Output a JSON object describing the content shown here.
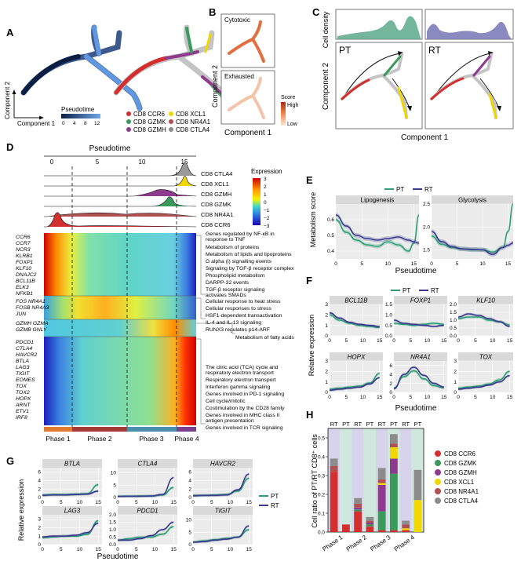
{
  "panels": {
    "a": "A",
    "b": "B",
    "c": "C",
    "d": "D",
    "e": "E",
    "f": "F",
    "g": "G",
    "h": "H"
  },
  "colors": {
    "PT": "#2e9e76",
    "RT": "#3b3b8c",
    "ccr6": "#d32f2f",
    "gzmk": "#3a9a5c",
    "gzmh": "#8e3b8e",
    "xcl1": "#f1d600",
    "nr4a1": "#b05050",
    "ctla4": "#8c8c8c",
    "bgGreen": "#cfe8dd",
    "bgPurple": "#d6d3ea"
  },
  "panelA": {
    "axis_x": "Component 1",
    "axis_y": "Component 2",
    "legend_title": "Pseudotime",
    "ticks": [
      "0",
      "4",
      "8",
      "12"
    ],
    "clusters": [
      "CD8 CCR6",
      "CD8 GZMK",
      "CD8 GZMH",
      "CD8 XCL1",
      "CD8 NR4A1",
      "CD8 CTLA4"
    ]
  },
  "panelB": {
    "top": "Cytotoxic",
    "bottom": "Exhausted",
    "axis_x": "Component 1",
    "axis_y": "Component 2",
    "score": "Score",
    "high": "High",
    "low": "Low"
  },
  "panelC": {
    "density": "Cell density",
    "pt": "PT",
    "rt": "RT",
    "axis_x": "Component 1",
    "axis_y": "Component 2"
  },
  "panelD": {
    "axis_title": "Pseudotime",
    "ticks": [
      "0",
      "5",
      "10",
      "15"
    ],
    "ridge_labels": [
      "CD8 CTLA4",
      "CD8 XCL1",
      "CD8 GZMH",
      "CD8 GZMK",
      "CD8 NR4A1",
      "CD8 CCR6"
    ],
    "expr_title": "Expression",
    "expr_ticks": [
      "3",
      "2",
      "1",
      "0",
      "−1",
      "−2",
      "−3"
    ],
    "genes": [
      "CCR6",
      "CCR7",
      "NCR3",
      "KLRB1",
      "FOXP1",
      "KLF10",
      "DNAJC2",
      "BCL11B",
      "ELK3",
      "NFKB1",
      "FOS NR4A1",
      "FOSB NR4A3",
      "JUN",
      "GZMH GZMA",
      "GZMB GNLY",
      "PDCD1",
      "CTLA4",
      "HAVCR2",
      "BTLA",
      "LAG3",
      "TIGIT",
      "EOMES",
      "TOX",
      "TOX2",
      "HOPX",
      "ARNT",
      "ETV1",
      "IRF8"
    ],
    "pathways": [
      "Genes regulated by NF-κB in",
      "response to TNF",
      "Metabolism of proteins",
      "Metabolism of lipids and lipoproteins",
      "G alpha (i) signalling events",
      "Signaling by TGF-β receptor complex",
      "Phospholipid metabolism",
      "DARPP-32 events",
      "TGF-β receptor signaling",
      "activates SMADs",
      "Cellular response to heat stress",
      "Cellular responses to stress",
      "HSF1-dependent transactivation",
      "IL-4 and IL-13 signaling",
      "RUNX3 regulates p14-ARF",
      "Metabolism of fatty acids",
      "The citric acid (TCA) cycle and",
      "respiratory electron transport",
      "Respiratory electron transport",
      "Interferon gamma signaling",
      "Genes involved in PD-1 signaling",
      "Cell cycle/mitotic",
      "Costimulation by the CD28 family",
      "Genes involved in MHC class II",
      "antigen presentation",
      "Genes involved in TCR signaling"
    ],
    "phases": [
      "Phase 1",
      "Phase 2",
      "Phase 3",
      "Phase 4"
    ]
  },
  "chart_data": [
    {
      "type": "line",
      "title": "Lipogenesis",
      "xlabel": "Pseudotime",
      "ylabel": "Metabolism score",
      "ylim": [
        0.35,
        0.7
      ],
      "yticks": [
        "0.6",
        "0.5",
        "0.4"
      ],
      "xticks": [
        "0",
        "5",
        "10",
        "15"
      ],
      "legend": [
        "PT",
        "RT"
      ],
      "series": [
        {
          "name": "PT",
          "x": [
            0,
            2,
            4,
            6,
            8,
            10,
            12,
            14,
            15,
            16
          ],
          "y": [
            0.6,
            0.52,
            0.47,
            0.44,
            0.43,
            0.46,
            0.44,
            0.4,
            0.45,
            0.63
          ]
        },
        {
          "name": "RT",
          "x": [
            0,
            2,
            4,
            6,
            8,
            10,
            12,
            14,
            15,
            16
          ],
          "y": [
            0.63,
            0.56,
            0.5,
            0.48,
            0.47,
            0.48,
            0.49,
            0.47,
            0.46,
            0.45
          ]
        }
      ]
    },
    {
      "type": "line",
      "title": "Glycolysis",
      "ylim": [
        1.3,
        2.5
      ],
      "yticks": [
        "2.5",
        "2.0",
        "1.5"
      ],
      "xticks": [
        "0",
        "5",
        "10",
        "15"
      ],
      "series": [
        {
          "name": "PT",
          "x": [
            0,
            2,
            4,
            6,
            8,
            10,
            12,
            14,
            15,
            16
          ],
          "y": [
            1.8,
            1.62,
            1.55,
            1.52,
            1.5,
            1.5,
            1.45,
            1.55,
            1.9,
            2.6
          ]
        },
        {
          "name": "RT",
          "x": [
            0,
            2,
            4,
            6,
            8,
            10,
            12,
            14,
            15,
            16
          ],
          "y": [
            1.9,
            1.68,
            1.57,
            1.52,
            1.51,
            1.5,
            1.4,
            1.55,
            1.6,
            1.65
          ]
        }
      ]
    },
    {
      "type": "line",
      "title": "Panel F",
      "xlabel": "Pseudotime",
      "ylabel": "Relative expression",
      "legend": [
        "PT",
        "RT"
      ],
      "xticks": [
        "0",
        "5",
        "10",
        "15"
      ],
      "subplots": [
        {
          "name": "BCL11B",
          "yticks": [
            "3",
            "2",
            "1",
            "0"
          ],
          "ylim": [
            0,
            3
          ],
          "PT": [
            2.0,
            1.5,
            1.2,
            1.0,
            0.9,
            0.8
          ],
          "RT": [
            2.2,
            1.7,
            1.3,
            1.1,
            1.0,
            0.9
          ]
        },
        {
          "name": "FOXP1",
          "yticks": [
            "1.5",
            "1.0",
            "0.5",
            "0.0"
          ],
          "ylim": [
            0,
            1.5
          ],
          "PT": [
            0.6,
            0.55,
            0.5,
            0.55,
            0.6,
            0.55
          ],
          "RT": [
            0.75,
            0.6,
            0.55,
            0.5,
            0.45,
            0.5
          ]
        },
        {
          "name": "KLF10",
          "yticks": [
            "2.0",
            "1.5",
            "1.0",
            "0.5",
            "0.0"
          ],
          "ylim": [
            0,
            2
          ],
          "PT": [
            1.1,
            1.2,
            1.2,
            1.0,
            0.9,
            0.7
          ],
          "RT": [
            1.2,
            1.4,
            1.3,
            1.1,
            0.9,
            0.6
          ]
        },
        {
          "name": "HOPX",
          "yticks": [
            "3",
            "2",
            "1",
            "0"
          ],
          "ylim": [
            0,
            3
          ],
          "PT": [
            0.3,
            0.4,
            0.5,
            0.6,
            0.9,
            1.8
          ],
          "RT": [
            0.2,
            0.3,
            0.4,
            0.5,
            0.8,
            1.4
          ]
        },
        {
          "name": "NR4A1",
          "yticks": [
            "6",
            "4",
            "2",
            "0"
          ],
          "ylim": [
            0,
            7
          ],
          "PT": [
            1.0,
            3.5,
            4.8,
            3.0,
            1.5,
            1.0
          ],
          "RT": [
            0.8,
            4.0,
            5.6,
            3.8,
            2.0,
            1.2
          ]
        },
        {
          "name": "TOX",
          "yticks": [
            "3",
            "2",
            "1",
            "0"
          ],
          "ylim": [
            0,
            3
          ],
          "PT": [
            0.4,
            0.5,
            0.6,
            0.8,
            1.2,
            2.0
          ],
          "RT": [
            0.3,
            0.4,
            0.5,
            0.7,
            1.0,
            1.6
          ]
        }
      ]
    },
    {
      "type": "line",
      "title": "Panel G",
      "xlabel": "Pseudotime",
      "ylabel": "Relative expression",
      "legend": [
        "PT",
        "RT"
      ],
      "xticks": [
        "0",
        "5",
        "10",
        "15"
      ],
      "subplots": [
        {
          "name": "BTLA",
          "yticks": [
            "6",
            "4",
            "2",
            "0"
          ],
          "ylim": [
            0,
            7
          ],
          "PT": [
            0.6,
            0.7,
            0.7,
            0.8,
            0.9,
            3.0
          ],
          "RT": [
            0.5,
            0.6,
            0.6,
            0.7,
            0.8,
            1.5
          ]
        },
        {
          "name": "CTLA4",
          "yticks": [
            "10",
            "5",
            "0"
          ],
          "ylim": [
            0,
            12
          ],
          "PT": [
            0.5,
            0.5,
            0.6,
            0.6,
            1.0,
            4.0
          ],
          "RT": [
            0.4,
            0.5,
            0.5,
            0.6,
            1.2,
            8.0
          ]
        },
        {
          "name": "HAVCR2",
          "yticks": [
            "6",
            "4",
            "2",
            "0"
          ],
          "ylim": [
            0,
            7
          ],
          "PT": [
            0.5,
            0.5,
            0.6,
            0.7,
            1.5,
            4.5
          ],
          "RT": [
            0.4,
            0.5,
            0.5,
            0.6,
            1.8,
            5.5
          ]
        },
        {
          "name": "LAG3",
          "yticks": [
            "3",
            "2",
            "1",
            "0"
          ],
          "ylim": [
            0,
            3.5
          ],
          "PT": [
            0.8,
            0.9,
            1.0,
            1.0,
            1.2,
            2.8
          ],
          "RT": [
            0.9,
            1.0,
            1.0,
            1.1,
            1.4,
            2.5
          ]
        },
        {
          "name": "PDCD1",
          "yticks": [
            "2.0",
            "1.5",
            "1.0",
            "0.5",
            "0.0"
          ],
          "ylim": [
            0,
            2
          ],
          "PT": [
            0.3,
            0.4,
            0.5,
            0.5,
            0.7,
            1.2
          ],
          "RT": [
            0.3,
            0.3,
            0.4,
            0.6,
            1.0,
            1.5
          ]
        },
        {
          "name": "TIGIT",
          "yticks": [
            "10",
            "5",
            "0"
          ],
          "ylim": [
            0,
            12
          ],
          "PT": [
            1.0,
            1.5,
            2.0,
            2.5,
            3.0,
            6.0
          ],
          "RT": [
            1.0,
            1.2,
            1.8,
            2.2,
            3.0,
            7.5
          ]
        }
      ]
    },
    {
      "type": "bar",
      "title": "Panel H",
      "ylabel": "Cell ratio of PT/RT CD8⁺ cells",
      "ylim": [
        0,
        0.55
      ],
      "yticks": [
        "0.5",
        "0.4",
        "0.3",
        "0.2",
        "0.1",
        "0.0"
      ],
      "categories": [
        "Phase 1 RT",
        "Phase 1 PT",
        "Phase 2 RT",
        "Phase 2 PT",
        "Phase 3 RT",
        "Phase 3 PT",
        "Phase 4 RT",
        "Phase 4 PT"
      ],
      "top_labels": [
        "RT",
        "PT",
        "RT",
        "PT",
        "RT",
        "PT",
        "RT",
        "PT"
      ],
      "phases": [
        "Phase 1",
        "Phase 2",
        "Phase 3",
        "Phase 4"
      ],
      "series": [
        {
          "name": "CD8 CCR6",
          "values": [
            0.32,
            0.04,
            0.11,
            0.03,
            0.01,
            0.01,
            0.01,
            0.0
          ]
        },
        {
          "name": "CD8 GZMK",
          "values": [
            0.0,
            0.0,
            0.01,
            0.01,
            0.1,
            0.3,
            0.0,
            0.0
          ]
        },
        {
          "name": "CD8 GZMH",
          "values": [
            0.0,
            0.0,
            0.01,
            0.01,
            0.14,
            0.08,
            0.0,
            0.0
          ]
        },
        {
          "name": "CD8 XCL1",
          "values": [
            0.0,
            0.0,
            0.0,
            0.0,
            0.01,
            0.06,
            0.01,
            0.17
          ]
        },
        {
          "name": "CD8 NR4A1",
          "values": [
            0.03,
            0.0,
            0.02,
            0.01,
            0.02,
            0.02,
            0.02,
            0.0
          ]
        },
        {
          "name": "CD8 CTLA4",
          "values": [
            0.04,
            0.0,
            0.03,
            0.02,
            0.06,
            0.05,
            0.02,
            0.16
          ]
        }
      ]
    }
  ]
}
